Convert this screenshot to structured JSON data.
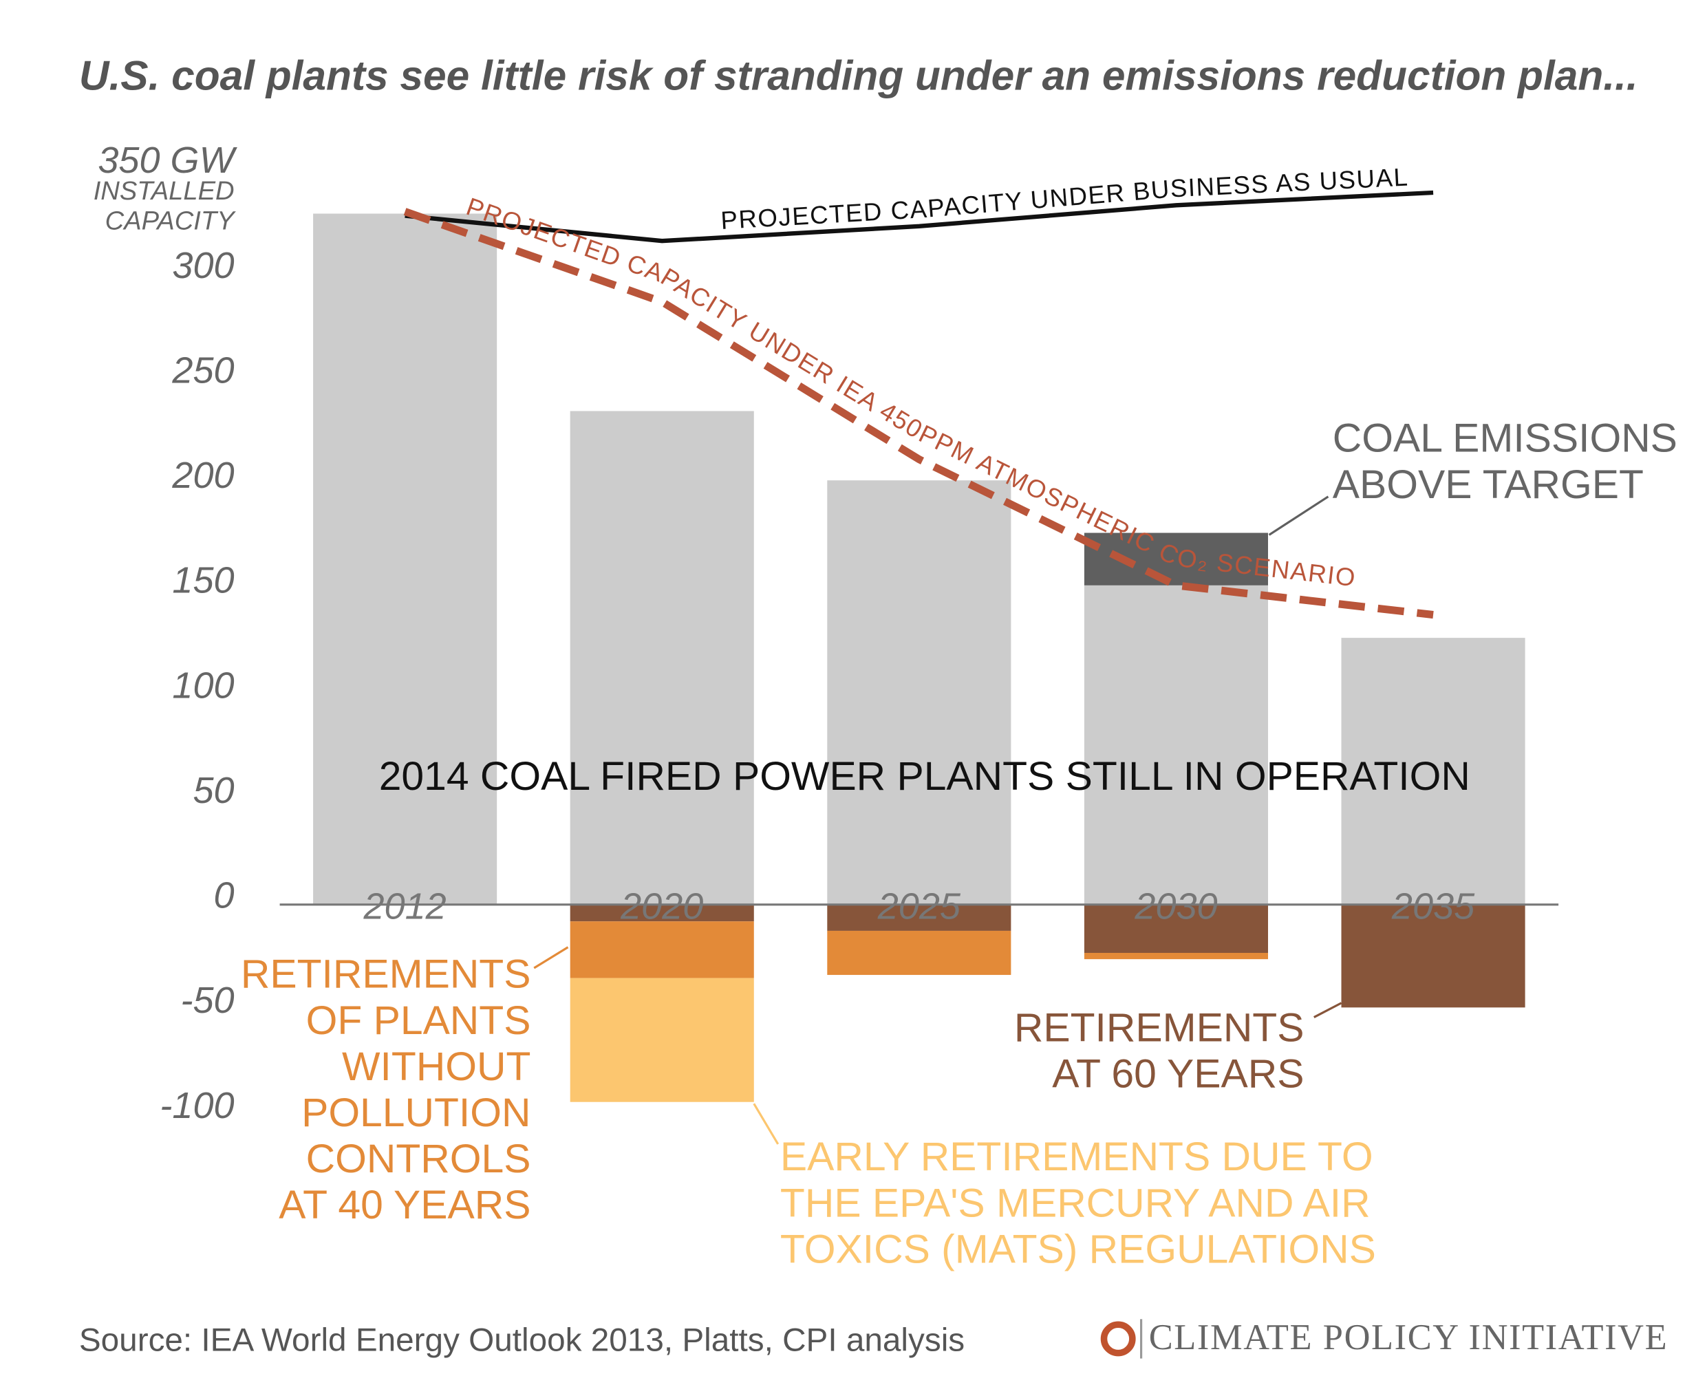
{
  "chart_data": {
    "type": "bar",
    "title": "U.S. coal plants see little risk of stranding under an emissions reduction plan...",
    "y_label": "INSTALLED\nCAPACITY",
    "source": "Source: IEA World Energy Outlook 2013, Platts, CPI analysis",
    "brand": "CLIMATE POLICY INITIATIVE",
    "categories": [
      "2012",
      "2020",
      "2025",
      "2030",
      "2035"
    ],
    "ylim": [
      -100,
      350
    ],
    "yticks": [
      -100,
      -50,
      0,
      50,
      100,
      150,
      200,
      250,
      300,
      {
        "value": 350,
        "label": "350 GW"
      }
    ],
    "series": [
      {
        "name": "2014 COAL FIRED POWER PLANTS STILL IN OPERATION",
        "color": "#cccccc",
        "values": [
          329,
          235,
          202,
          152,
          127
        ]
      },
      {
        "name": "COAL EMISSIONS\nABOVE TARGET",
        "color": "#5f5f5f",
        "values": [
          null,
          null,
          null,
          25,
          null
        ]
      },
      {
        "name": "RETIREMENTS\nAT 60 YEARS",
        "color": "#87553a",
        "values": [
          null,
          -8,
          -12.5,
          -23,
          -49
        ]
      },
      {
        "name": "RETIREMENTS\nOF PLANTS\nWITHOUT\nPOLLUTION\nCONTROLS\nAT 40 YEARS",
        "color": "#e38a38",
        "values": [
          null,
          -27,
          -21,
          -3,
          null
        ]
      },
      {
        "name": "EARLY RETIREMENTS DUE TO\nTHE EPA'S MERCURY AND AIR\nTOXICS (MATS) REGULATIONS",
        "color": "#fcc66f",
        "values": [
          null,
          -59,
          null,
          null,
          null
        ]
      },
      {
        "name": "PROJECTED CAPACITY UNDER BUSINESS AS USUAL",
        "type": "line",
        "color": "#111111",
        "values": [
          328,
          316,
          323,
          333,
          339
        ]
      },
      {
        "name": "PROJECTED CAPACITY UNDER IEA 450PPM ATMOSPHERIC CO₂ SCENARIO",
        "type": "line",
        "dashed": true,
        "color": "#b9553a",
        "values": [
          330,
          287,
          212,
          152,
          138
        ]
      }
    ]
  }
}
